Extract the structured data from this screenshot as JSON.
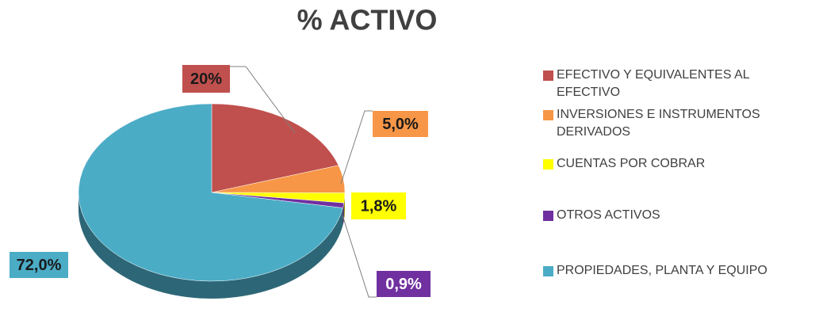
{
  "chart_data": {
    "type": "pie",
    "title": "% ACTIVO",
    "categories": [
      "EFECTIVO Y EQUIVALENTES AL EFECTIVO",
      "INVERSIONES E INSTRUMENTOS DERIVADOS",
      "CUENTAS POR COBRAR",
      "OTROS ACTIVOS",
      "PROPIEDADES, PLANTA Y EQUIPO"
    ],
    "values": [
      20,
      5.0,
      1.8,
      0.9,
      72.0
    ],
    "value_labels": [
      "20%",
      "5,0%",
      "1,8%",
      "0,9%",
      "72,0%"
    ],
    "colors": [
      "#c0504d",
      "#f79646",
      "#ffff00",
      "#7030a0",
      "#4bacc6"
    ],
    "legend": "right"
  }
}
